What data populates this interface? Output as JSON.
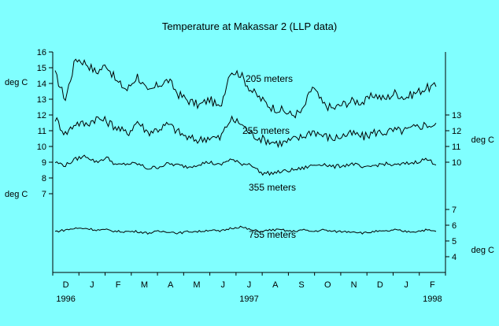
{
  "chart_data": {
    "type": "line",
    "title": "Temperature at Makassar 2 (LLP data)",
    "background": "#80ffff",
    "line_color": "#000000",
    "left_axis": {
      "ticks": [
        "16",
        "15",
        "14",
        "13",
        "12",
        "11",
        "10",
        "9",
        "8",
        "7"
      ],
      "units": [
        "deg C",
        "deg C"
      ]
    },
    "right_axis": {
      "ticks": [
        "13",
        "12",
        "11",
        "10",
        "7",
        "6",
        "5",
        "4"
      ],
      "units": [
        "deg C",
        "deg C"
      ]
    },
    "x_axis": {
      "month_labels": [
        "D",
        "J",
        "F",
        "M",
        "A",
        "M",
        "J",
        "J",
        "A",
        "S",
        "O",
        "N",
        "D",
        "J",
        "F"
      ],
      "year_labels": [
        "1996",
        "1997",
        "1998"
      ],
      "range": [
        "1996-12",
        "1998-02"
      ]
    },
    "series": [
      {
        "name": "205 meters",
        "axis": "left",
        "values": [
          14.6,
          13.0,
          15.6,
          15.3,
          14.7,
          15.2,
          14.1,
          13.6,
          14.5,
          13.4,
          13.9,
          14.2,
          13.3,
          12.9,
          12.6,
          13.0,
          12.4,
          14.8,
          14.6,
          13.6,
          13.0,
          12.5,
          12.3,
          12.0,
          12.2,
          13.8,
          12.7,
          12.4,
          12.7,
          12.9,
          12.8,
          13.3,
          13.0,
          13.4,
          13.1,
          13.4,
          13.7,
          13.8
        ]
      },
      {
        "name": "255 meters",
        "axis": "left",
        "values": [
          11.8,
          10.8,
          11.5,
          11.4,
          11.8,
          11.6,
          11.2,
          10.8,
          11.6,
          10.9,
          11.1,
          11.4,
          10.9,
          10.5,
          10.4,
          10.6,
          10.5,
          11.7,
          11.5,
          10.8,
          10.5,
          10.3,
          10.2,
          10.4,
          10.6,
          11.0,
          10.7,
          10.5,
          10.7,
          10.8,
          10.6,
          10.9,
          10.9,
          11.0,
          11.0,
          11.2,
          11.4,
          11.3
        ]
      },
      {
        "name": "355 meters",
        "axis": "left",
        "values": [
          9.0,
          8.8,
          9.2,
          9.4,
          9.0,
          9.3,
          8.8,
          8.9,
          8.9,
          8.6,
          8.7,
          8.9,
          8.8,
          8.7,
          8.9,
          9.0,
          8.8,
          9.2,
          8.9,
          8.9,
          8.3,
          8.3,
          8.4,
          8.5,
          8.6,
          8.8,
          8.9,
          8.7,
          8.8,
          8.9,
          8.6,
          8.8,
          8.9,
          8.8,
          8.9,
          9.0,
          9.2,
          8.9
        ]
      },
      {
        "name": "755 meters",
        "axis": "right",
        "values": [
          5.6,
          5.7,
          5.8,
          5.8,
          5.7,
          5.7,
          5.6,
          5.6,
          5.6,
          5.5,
          5.6,
          5.6,
          5.5,
          5.6,
          5.6,
          5.7,
          5.6,
          5.8,
          5.9,
          5.7,
          5.6,
          5.7,
          5.7,
          5.6,
          5.7,
          5.6,
          5.7,
          5.6,
          5.6,
          5.6,
          5.5,
          5.6,
          5.6,
          5.7,
          5.6,
          5.6,
          5.7,
          5.6
        ]
      }
    ]
  }
}
